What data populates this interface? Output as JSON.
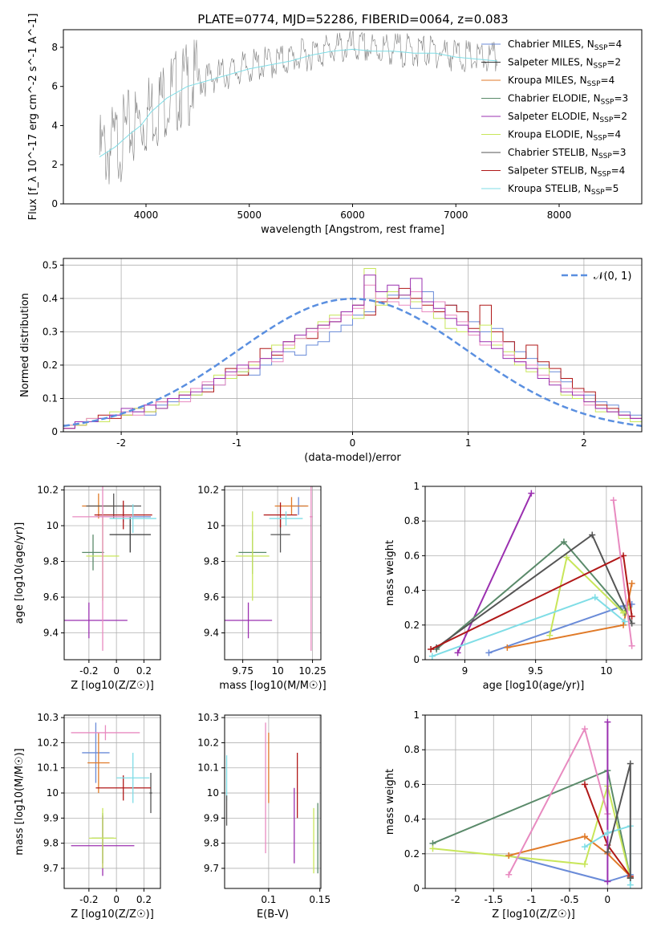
{
  "figure": {
    "title": "PLATE=0774, MJD=52286, FIBERID=0064, z=0.083"
  },
  "models": [
    {
      "name": "Chabrier MILES",
      "nssp": "4",
      "color": "#6a8bd8"
    },
    {
      "name": "Salpeter MILES",
      "nssp": "2",
      "color": "#3a3a3a"
    },
    {
      "name": "Kroupa MILES",
      "nssp": "4",
      "color": "#e07a28"
    },
    {
      "name": "Chabrier ELODIE",
      "nssp": "3",
      "color": "#5a8a6a"
    },
    {
      "name": "Salpeter ELODIE",
      "nssp": "2",
      "color": "#9b30b0"
    },
    {
      "name": "Kroupa ELODIE",
      "nssp": "4",
      "color": "#c8e65a"
    },
    {
      "name": "Chabrier STELIB",
      "nssp": "3",
      "color": "#555555"
    },
    {
      "name": "Salpeter STELIB",
      "nssp": "4",
      "color": "#b01818"
    },
    {
      "name": "Kroupa STELIB",
      "nssp": "5",
      "color": "#7fdde6"
    }
  ],
  "chart_data": [
    {
      "id": "spectrum",
      "type": "line",
      "xlabel": "wavelength [Angstrom, rest frame]",
      "ylabel": "Flux [f_λ 10^-17 erg cm^-2 s^-1 A^-1]",
      "xlim": [
        3200,
        8800
      ],
      "ylim": [
        0,
        8.9
      ],
      "xticks": [
        4000,
        5000,
        6000,
        7000,
        8000
      ],
      "yticks": [
        0,
        2,
        4,
        6,
        8
      ],
      "legend_position": "right",
      "x": [
        3550,
        3700,
        3850,
        3950,
        4050,
        4200,
        4400,
        4600,
        4800,
        5000,
        5200,
        5400,
        5600,
        5800,
        6000,
        6200,
        6400,
        6600,
        6800,
        7000,
        7200,
        7400
      ],
      "series": [
        {
          "name": "data",
          "color": "#808080",
          "values": [
            2.5,
            3.0,
            3.8,
            4.2,
            4.8,
            5.5,
            6.1,
            6.4,
            6.7,
            7.0,
            7.2,
            7.4,
            7.7,
            7.9,
            8.0,
            7.9,
            7.9,
            7.8,
            7.8,
            7.6,
            7.4,
            7.4
          ]
        },
        {
          "name": "Kroupa STELIB",
          "color": "#7fdde6",
          "values": [
            2.4,
            2.9,
            3.6,
            4.0,
            4.7,
            5.4,
            6.0,
            6.3,
            6.6,
            6.9,
            7.1,
            7.3,
            7.6,
            7.8,
            7.9,
            7.8,
            7.8,
            7.7,
            7.7,
            7.5,
            7.4,
            7.3
          ]
        }
      ]
    },
    {
      "id": "residuals",
      "type": "bar",
      "xlabel": "(data-model)/error",
      "ylabel": "Normed distribution",
      "xlim": [
        -2.5,
        2.5
      ],
      "ylim": [
        0,
        0.52
      ],
      "xticks": [
        -2,
        -1,
        0,
        1,
        2
      ],
      "yticks": [
        0.0,
        0.1,
        0.2,
        0.3,
        0.4,
        0.5
      ],
      "legend": "𝒩(0, 1)",
      "legend_position": "top-right",
      "bin_edges_start": -2.5,
      "bin_width": 0.1,
      "histograms": [
        {
          "color": "#6a8bd8",
          "values": [
            0.02,
            0.03,
            0.03,
            0.04,
            0.05,
            0.06,
            0.06,
            0.05,
            0.08,
            0.09,
            0.1,
            0.11,
            0.13,
            0.14,
            0.16,
            0.18,
            0.17,
            0.2,
            0.22,
            0.24,
            0.23,
            0.26,
            0.27,
            0.3,
            0.32,
            0.35,
            0.36,
            0.39,
            0.41,
            0.4,
            0.37,
            0.42,
            0.39,
            0.38,
            0.36,
            0.33,
            0.3,
            0.31,
            0.27,
            0.24,
            0.22,
            0.2,
            0.18,
            0.15,
            0.13,
            0.11,
            0.09,
            0.08,
            0.06,
            0.05,
            0.04
          ]
        },
        {
          "color": "#b01818",
          "values": [
            0.01,
            0.02,
            0.03,
            0.05,
            0.04,
            0.05,
            0.07,
            0.06,
            0.09,
            0.1,
            0.11,
            0.13,
            0.12,
            0.16,
            0.19,
            0.17,
            0.21,
            0.25,
            0.23,
            0.27,
            0.29,
            0.28,
            0.32,
            0.33,
            0.36,
            0.38,
            0.35,
            0.39,
            0.4,
            0.43,
            0.4,
            0.38,
            0.36,
            0.38,
            0.36,
            0.31,
            0.38,
            0.3,
            0.27,
            0.22,
            0.26,
            0.21,
            0.19,
            0.16,
            0.13,
            0.12,
            0.08,
            0.07,
            0.05,
            0.04,
            0.03
          ]
        },
        {
          "color": "#c8e65a",
          "values": [
            0.02,
            0.02,
            0.04,
            0.03,
            0.06,
            0.05,
            0.07,
            0.06,
            0.07,
            0.08,
            0.12,
            0.11,
            0.14,
            0.17,
            0.16,
            0.18,
            0.2,
            0.22,
            0.26,
            0.25,
            0.28,
            0.31,
            0.33,
            0.35,
            0.36,
            0.34,
            0.49,
            0.38,
            0.42,
            0.41,
            0.39,
            0.36,
            0.34,
            0.31,
            0.3,
            0.29,
            0.32,
            0.26,
            0.24,
            0.2,
            0.18,
            0.19,
            0.15,
            0.11,
            0.1,
            0.09,
            0.06,
            0.06,
            0.04,
            0.03,
            0.02
          ]
        },
        {
          "color": "#e88ac0",
          "values": [
            0.02,
            0.03,
            0.04,
            0.04,
            0.05,
            0.06,
            0.05,
            0.08,
            0.09,
            0.1,
            0.09,
            0.13,
            0.15,
            0.14,
            0.17,
            0.19,
            0.21,
            0.22,
            0.21,
            0.26,
            0.28,
            0.3,
            0.31,
            0.34,
            0.35,
            0.37,
            0.44,
            0.4,
            0.39,
            0.38,
            0.42,
            0.36,
            0.39,
            0.35,
            0.33,
            0.29,
            0.26,
            0.27,
            0.23,
            0.21,
            0.2,
            0.17,
            0.15,
            0.13,
            0.12,
            0.08,
            0.07,
            0.06,
            0.05,
            0.04,
            0.03
          ]
        },
        {
          "color": "#9b30b0",
          "values": [
            0.01,
            0.03,
            0.03,
            0.04,
            0.05,
            0.07,
            0.06,
            0.08,
            0.07,
            0.1,
            0.11,
            0.12,
            0.14,
            0.16,
            0.18,
            0.2,
            0.19,
            0.22,
            0.24,
            0.27,
            0.29,
            0.31,
            0.32,
            0.33,
            0.36,
            0.38,
            0.47,
            0.42,
            0.44,
            0.41,
            0.46,
            0.39,
            0.37,
            0.34,
            0.32,
            0.3,
            0.27,
            0.25,
            0.22,
            0.21,
            0.19,
            0.16,
            0.14,
            0.12,
            0.11,
            0.09,
            0.07,
            0.06,
            0.05,
            0.04,
            0.03
          ]
        }
      ],
      "normal_curve": {
        "mean": 0,
        "sigma": 1,
        "color": "#5a8fe0"
      }
    },
    {
      "id": "age-vs-Z",
      "type": "scatter",
      "xlabel": "Z [log10(Z/Z☉)]",
      "ylabel": "age [log10(age/yr)]",
      "xlim": [
        -0.38,
        0.32
      ],
      "ylim": [
        9.25,
        10.22
      ],
      "xticks": [
        -0.2,
        0.0,
        0.2
      ],
      "yticks": [
        9.4,
        9.6,
        9.8,
        10.0,
        10.2
      ],
      "points": [
        {
          "x": 0.05,
          "xerr": 0.2,
          "y": 10.05,
          "yerr": 0.03,
          "color": "#6a8bd8"
        },
        {
          "x": 0.1,
          "xerr": 0.15,
          "y": 9.95,
          "yerr": 0.1,
          "color": "#3a3a3a"
        },
        {
          "x": -0.13,
          "xerr": 0.12,
          "y": 10.11,
          "yerr": 0.07,
          "color": "#e07a28"
        },
        {
          "x": -0.17,
          "xerr": 0.08,
          "y": 9.85,
          "yerr": 0.1,
          "color": "#5a8a6a"
        },
        {
          "x": -0.2,
          "xerr": 0.28,
          "y": 9.47,
          "yerr": 0.1,
          "color": "#9b30b0"
        },
        {
          "x": -0.1,
          "xerr": 0.12,
          "y": 9.83,
          "yerr": 0.25,
          "color": "#c8e65a"
        },
        {
          "x": -0.02,
          "xerr": 0.2,
          "y": 10.11,
          "yerr": 0.07,
          "color": "#555555"
        },
        {
          "x": 0.05,
          "xerr": 0.21,
          "y": 10.06,
          "yerr": 0.08,
          "color": "#b01818"
        },
        {
          "x": 0.12,
          "xerr": 0.17,
          "y": 10.04,
          "yerr": 0.08,
          "color": "#7fdde6"
        },
        {
          "x": -0.1,
          "xerr": 0.22,
          "y": 10.05,
          "yerr": 0.75,
          "color": "#e88ac0"
        }
      ]
    },
    {
      "id": "age-vs-mass",
      "type": "scatter",
      "xlabel": "mass [log10(M/M☉)]",
      "xlim": [
        9.62,
        10.31
      ],
      "ylim": [
        9.25,
        10.22
      ],
      "xticks": [
        9.75,
        10.0,
        10.25
      ],
      "yticks": [
        9.4,
        9.6,
        9.8,
        10.0,
        10.2
      ],
      "points": [
        {
          "x": 10.15,
          "xerr": 0.06,
          "y": 10.11,
          "yerr": 0.05,
          "color": "#6a8bd8"
        },
        {
          "x": 10.1,
          "xerr": 0.12,
          "y": 10.11,
          "yerr": 0.05,
          "color": "#e07a28"
        },
        {
          "x": 9.82,
          "xerr": 0.1,
          "y": 9.85,
          "yerr": 0.12,
          "color": "#5a8a6a"
        },
        {
          "x": 9.79,
          "xerr": 0.17,
          "y": 9.47,
          "yerr": 0.1,
          "color": "#9b30b0"
        },
        {
          "x": 9.82,
          "xerr": 0.12,
          "y": 9.83,
          "yerr": 0.25,
          "color": "#c8e65a"
        },
        {
          "x": 10.02,
          "xerr": 0.07,
          "y": 9.95,
          "yerr": 0.1,
          "color": "#555555"
        },
        {
          "x": 10.02,
          "xerr": 0.12,
          "y": 10.06,
          "yerr": 0.07,
          "color": "#b01818"
        },
        {
          "x": 10.06,
          "xerr": 0.12,
          "y": 10.04,
          "yerr": 0.04,
          "color": "#7fdde6"
        },
        {
          "x": 10.24,
          "xerr": 0.01,
          "y": 10.05,
          "yerr": 0.75,
          "color": "#e88ac0"
        }
      ]
    },
    {
      "id": "weight-vs-age",
      "type": "line",
      "xlabel": "age [log10(age/yr)]",
      "ylabel": "mass weight",
      "xlim": [
        8.72,
        10.25
      ],
      "ylim": [
        0,
        1.0
      ],
      "xticks": [
        9.0,
        9.5,
        10.0
      ],
      "yticks": [
        0.0,
        0.2,
        0.4,
        0.6,
        0.8,
        1.0
      ],
      "series": [
        {
          "color": "#6a8bd8",
          "x": [
            9.17,
            10.12,
            10.18
          ],
          "y": [
            0.04,
            0.31,
            0.32
          ]
        },
        {
          "color": "#9b30b0",
          "x": [
            8.95,
            9.47
          ],
          "y": [
            0.04,
            0.96
          ]
        },
        {
          "color": "#e07a28",
          "x": [
            9.3,
            10.12,
            10.18
          ],
          "y": [
            0.07,
            0.2,
            0.44
          ]
        },
        {
          "color": "#5a8a6a",
          "x": [
            8.8,
            9.7,
            10.13
          ],
          "y": [
            0.06,
            0.68,
            0.27
          ]
        },
        {
          "color": "#c8e65a",
          "x": [
            9.6,
            9.72,
            10.12,
            10.16
          ],
          "y": [
            0.14,
            0.59,
            0.27,
            0.3
          ]
        },
        {
          "color": "#555555",
          "x": [
            8.8,
            9.9,
            10.18
          ],
          "y": [
            0.07,
            0.72,
            0.21
          ]
        },
        {
          "color": "#b01818",
          "x": [
            8.76,
            10.12,
            10.18
          ],
          "y": [
            0.06,
            0.6,
            0.25
          ]
        },
        {
          "color": "#7fdde6",
          "x": [
            8.77,
            9.92,
            10.13
          ],
          "y": [
            0.02,
            0.36,
            0.22
          ]
        },
        {
          "color": "#e88ac0",
          "x": [
            10.05,
            10.18
          ],
          "y": [
            0.92,
            0.08
          ]
        }
      ]
    },
    {
      "id": "mass-vs-Z",
      "type": "scatter",
      "xlabel": "Z [log10(Z/Z☉)]",
      "ylabel": "mass [log10(M/M☉)]",
      "xlim": [
        -0.38,
        0.32
      ],
      "ylim": [
        9.62,
        10.31
      ],
      "xticks": [
        -0.2,
        0.0,
        0.2
      ],
      "yticks": [
        9.7,
        9.8,
        9.9,
        10.0,
        10.1,
        10.2,
        10.3
      ],
      "points": [
        {
          "x": -0.15,
          "xerr": 0.1,
          "y": 10.16,
          "yerr": 0.12,
          "color": "#6a8bd8"
        },
        {
          "x": -0.13,
          "xerr": 0.08,
          "y": 10.12,
          "yerr": 0.12,
          "color": "#e07a28"
        },
        {
          "x": -0.1,
          "xerr": 0.08,
          "y": 9.82,
          "yerr": 0.1,
          "color": "#5a8a6a"
        },
        {
          "x": -0.1,
          "xerr": 0.23,
          "y": 9.79,
          "yerr": 0.12,
          "color": "#9b30b0"
        },
        {
          "x": -0.1,
          "xerr": 0.1,
          "y": 9.82,
          "yerr": 0.12,
          "color": "#c8e65a"
        },
        {
          "x": 0.25,
          "xerr": 0.01,
          "y": 10.0,
          "yerr": 0.08,
          "color": "#555555"
        },
        {
          "x": 0.05,
          "xerr": 0.2,
          "y": 10.02,
          "yerr": 0.05,
          "color": "#b01818"
        },
        {
          "x": 0.12,
          "xerr": 0.12,
          "y": 10.06,
          "yerr": 0.1,
          "color": "#7fdde6"
        },
        {
          "x": -0.08,
          "xerr": 0.25,
          "y": 10.24,
          "yerr": 0.03,
          "color": "#e88ac0"
        }
      ]
    },
    {
      "id": "mass-vs-EBV",
      "type": "scatter",
      "xlabel": "E(B-V)",
      "xlim": [
        0.057,
        0.151
      ],
      "ylim": [
        9.62,
        10.31
      ],
      "xticks": [
        0.05,
        0.1,
        0.15
      ],
      "yticks": [
        9.7,
        9.8,
        9.9,
        10.0,
        10.1,
        10.2,
        10.3
      ],
      "points": [
        {
          "x": 0.059,
          "y": 10.06,
          "yerr": 0.09,
          "color": "#7fdde6"
        },
        {
          "x": 0.059,
          "y": 9.93,
          "yerr": 0.06,
          "color": "#555555"
        },
        {
          "x": 0.097,
          "y": 10.02,
          "yerr": 0.26,
          "color": "#e88ac0"
        },
        {
          "x": 0.1,
          "y": 10.1,
          "yerr": 0.14,
          "color": "#e07a28"
        },
        {
          "x": 0.125,
          "y": 9.87,
          "yerr": 0.15,
          "color": "#9b30b0"
        },
        {
          "x": 0.128,
          "y": 10.03,
          "yerr": 0.13,
          "color": "#b01818"
        },
        {
          "x": 0.144,
          "y": 9.81,
          "yerr": 0.13,
          "color": "#c8e65a"
        },
        {
          "x": 0.148,
          "y": 9.82,
          "yerr": 0.14,
          "color": "#5a8a6a"
        }
      ]
    },
    {
      "id": "weight-vs-Z",
      "type": "line",
      "xlabel": "Z [log10(Z/Z☉)]",
      "ylabel": "mass weight",
      "xlim": [
        -2.4,
        0.45
      ],
      "ylim": [
        0,
        1.0
      ],
      "xticks": [
        -2.0,
        -1.5,
        -1.0,
        -0.5,
        0.0
      ],
      "yticks": [
        0.0,
        0.2,
        0.4,
        0.6,
        0.8,
        1.0
      ],
      "series": [
        {
          "color": "#6a8bd8",
          "x": [
            -1.3,
            0.0,
            0.3,
            0.3
          ],
          "y": [
            0.19,
            0.04,
            0.08,
            0.06
          ]
        },
        {
          "color": "#5a8a6a",
          "x": [
            -2.3,
            0.0,
            0.3
          ],
          "y": [
            0.26,
            0.68,
            0.06
          ]
        },
        {
          "color": "#c8e65a",
          "x": [
            -2.3,
            -0.3,
            0.0,
            0.3
          ],
          "y": [
            0.23,
            0.14,
            0.59,
            0.06
          ]
        },
        {
          "color": "#e07a28",
          "x": [
            -1.3,
            -0.3,
            0.0,
            0.3
          ],
          "y": [
            0.19,
            0.3,
            0.2,
            0.07
          ]
        },
        {
          "color": "#b01818",
          "x": [
            -0.3,
            0.0,
            0.3,
            0.3
          ],
          "y": [
            0.6,
            0.25,
            0.07,
            0.06
          ]
        },
        {
          "color": "#e88ac0",
          "x": [
            -1.3,
            -0.3,
            0.0
          ],
          "y": [
            0.08,
            0.92,
            0.43
          ]
        },
        {
          "color": "#9b30b0",
          "x": [
            0.0,
            0.0
          ],
          "y": [
            0.96,
            0.04
          ]
        },
        {
          "color": "#7fdde6",
          "x": [
            -0.3,
            0.0,
            0.3,
            0.3
          ],
          "y": [
            0.24,
            0.32,
            0.36,
            0.02
          ]
        },
        {
          "color": "#555555",
          "x": [
            0.0,
            0.3,
            0.3
          ],
          "y": [
            0.21,
            0.72,
            0.06
          ]
        }
      ]
    }
  ]
}
